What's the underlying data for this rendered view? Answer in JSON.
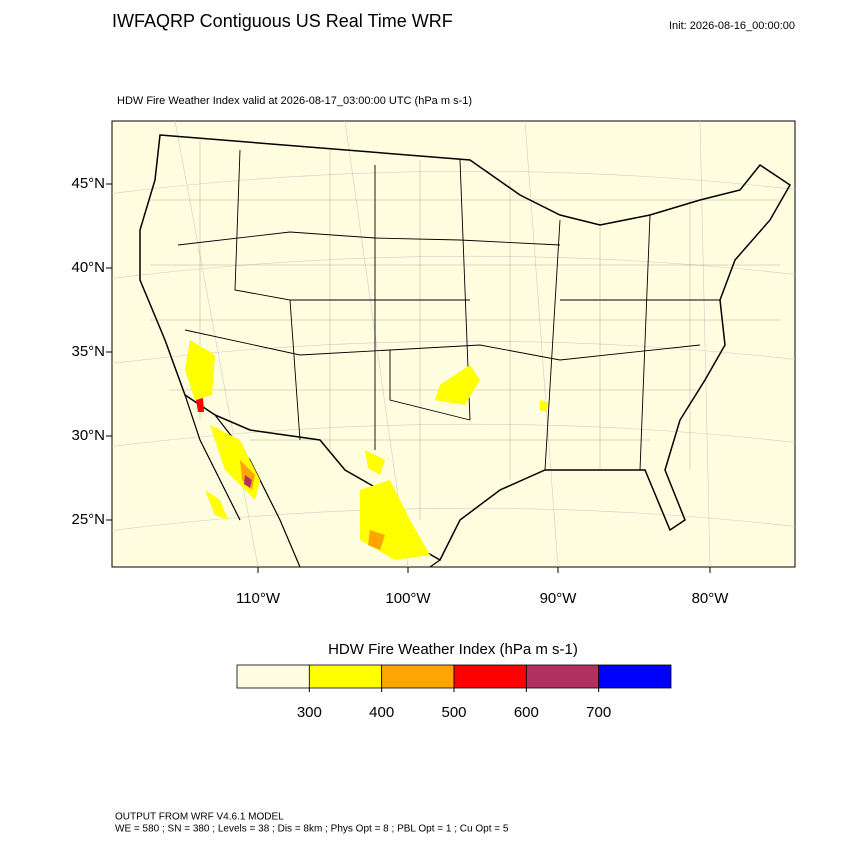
{
  "header": {
    "title": "IWFAQRP Contiguous US Real Time WRF",
    "init": "Init: 2026-08-16_00:00:00"
  },
  "map": {
    "subtitle": "HDW Fire Weather Index valid at 2026-08-17_03:00:00 UTC   (hPa m s-1)",
    "lat_labels": [
      "45°N",
      "40°N",
      "35°N",
      "30°N",
      "25°N"
    ],
    "lon_labels": [
      "110°W",
      "100°W",
      "90°W",
      "80°W"
    ]
  },
  "colorbar": {
    "title": "HDW Fire Weather Index (hPa m s-1)",
    "levels": [
      300,
      400,
      500,
      600,
      700
    ],
    "colors": [
      "#fffde0",
      "#ffff00",
      "#ffa500",
      "#ff0000",
      "#b03060",
      "#0000ff"
    ]
  },
  "footer": {
    "line1": "OUTPUT FROM WRF V4.6.1 MODEL",
    "line2": "WE = 580 ; SN = 380 ; Levels = 38 ; Dis = 8km ; Phys Opt = 8 ; PBL Opt = 1 ; Cu Opt = 5"
  }
}
